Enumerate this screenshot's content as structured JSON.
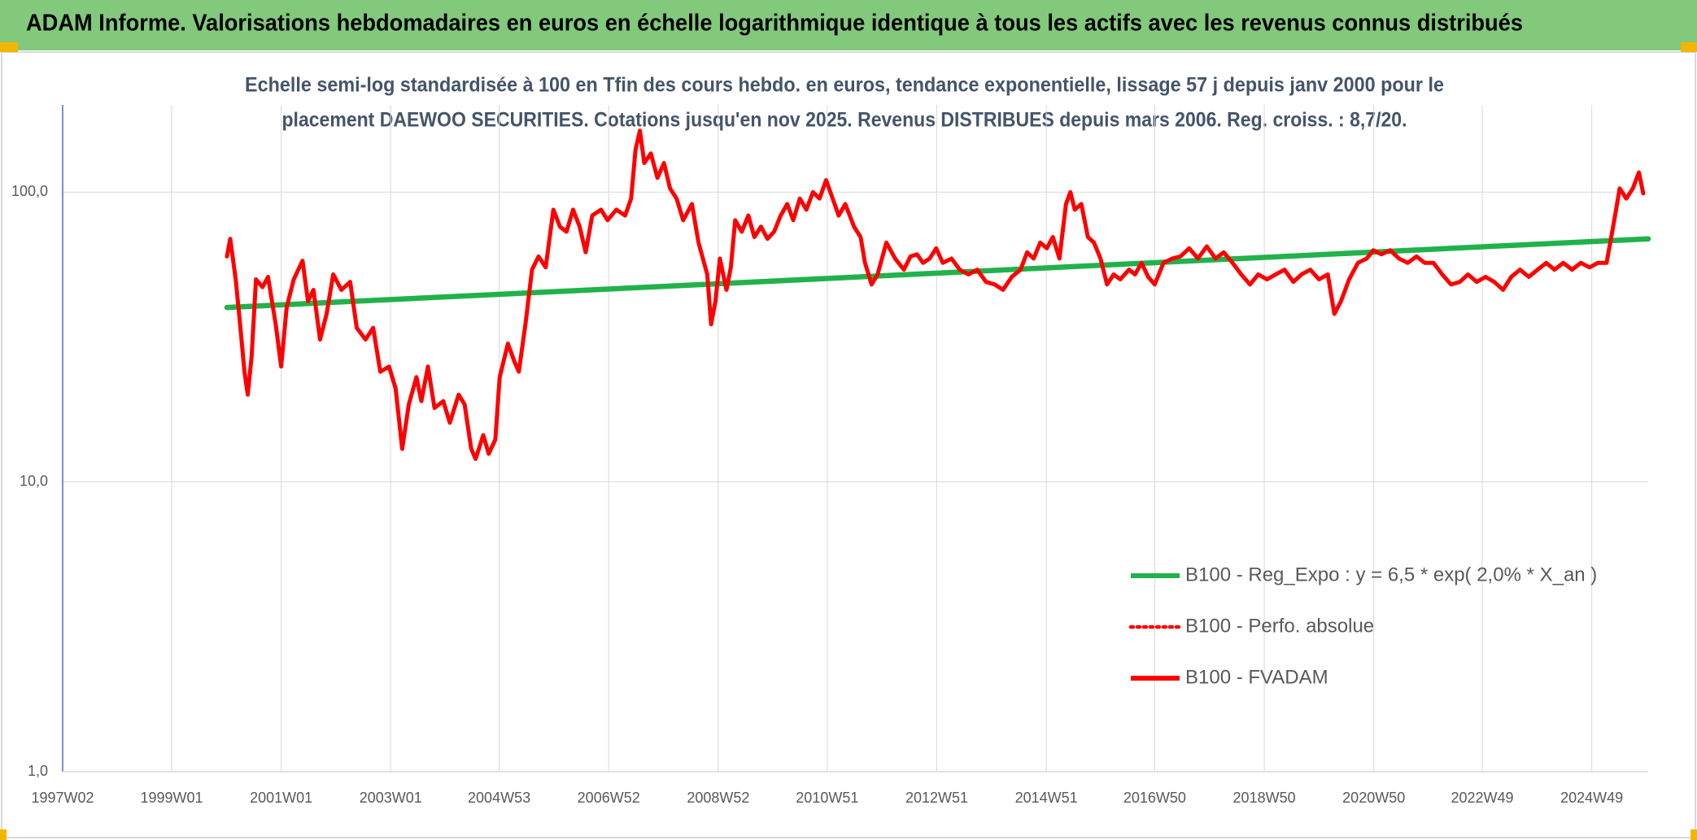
{
  "chart_data": {
    "type": "line",
    "title": "ADAM Informe. Valorisations hebdomadaires en euros en échelle logarithmique identique à tous les actifs avec les revenus connus distribués",
    "subtitle": [
      "Echelle semi-log standardisée à 100 en Tfin des cours hebdo. en euros, tendance exponentielle, lissage 57 j depuis janv 2000 pour le",
      "placement DAEWOO SECURITIES. Cotations jusqu'en nov 2025. Revenus DISTRIBUES depuis mars 2006. Reg. croiss. : 8,7/20."
    ],
    "yscale": "log",
    "ylim": [
      1,
      200
    ],
    "yticks": [
      {
        "value": 1,
        "label": "1,0"
      },
      {
        "value": 10,
        "label": "10,0"
      },
      {
        "value": 100,
        "label": "100,0"
      }
    ],
    "xlim": [
      1997.02,
      2025.97
    ],
    "xticks": [
      {
        "value": 1997.02,
        "label": "1997W02"
      },
      {
        "value": 1999.01,
        "label": "1999W01"
      },
      {
        "value": 2001.01,
        "label": "2001W01"
      },
      {
        "value": 2003.01,
        "label": "2003W01"
      },
      {
        "value": 2004.99,
        "label": "2004W53"
      },
      {
        "value": 2006.99,
        "label": "2006W52"
      },
      {
        "value": 2008.99,
        "label": "2008W52"
      },
      {
        "value": 2010.98,
        "label": "2010W51"
      },
      {
        "value": 2012.98,
        "label": "2012W51"
      },
      {
        "value": 2014.98,
        "label": "2014W51"
      },
      {
        "value": 2016.96,
        "label": "2016W50"
      },
      {
        "value": 2018.96,
        "label": "2018W50"
      },
      {
        "value": 2020.96,
        "label": "2020W50"
      },
      {
        "value": 2022.94,
        "label": "2022W49"
      },
      {
        "value": 2024.94,
        "label": "2024W49"
      }
    ],
    "grid": true,
    "legend": "lower right",
    "series": [
      {
        "name": "B100 - Reg_Expo : y = 6,5 * exp( 2,0% * X_an )",
        "color": "#21b24b",
        "dash": false,
        "x": [
          2000.02,
          2025.97
        ],
        "values": [
          40,
          69
        ]
      },
      {
        "name": "B100 - Perfo. absolue",
        "color": "#ff0000",
        "dash": true,
        "x": [],
        "values": []
      },
      {
        "name": "B100 - FVADAM",
        "color": "#ff0000",
        "dash": false,
        "x": [
          2000.02,
          2000.08,
          2000.18,
          2000.26,
          2000.34,
          2000.4,
          2000.47,
          2000.55,
          2000.67,
          2000.77,
          2000.91,
          2001.01,
          2001.11,
          2001.24,
          2001.4,
          2001.5,
          2001.6,
          2001.72,
          2001.84,
          2001.96,
          2002.11,
          2002.27,
          2002.39,
          2002.55,
          2002.69,
          2002.82,
          2002.98,
          2003.1,
          2003.22,
          2003.34,
          2003.48,
          2003.57,
          2003.69,
          2003.81,
          2003.97,
          2004.09,
          2004.25,
          2004.36,
          2004.48,
          2004.56,
          2004.7,
          2004.8,
          2004.92,
          2005.0,
          2005.15,
          2005.27,
          2005.35,
          2005.47,
          2005.59,
          2005.71,
          2005.84,
          2005.98,
          2006.1,
          2006.22,
          2006.34,
          2006.46,
          2006.57,
          2006.69,
          2006.85,
          2006.97,
          2007.13,
          2007.29,
          2007.4,
          2007.48,
          2007.56,
          2007.64,
          2007.76,
          2007.88,
          2008.0,
          2008.11,
          2008.23,
          2008.35,
          2008.51,
          2008.63,
          2008.71,
          2008.79,
          2008.86,
          2008.94,
          2009.02,
          2009.14,
          2009.22,
          2009.3,
          2009.42,
          2009.54,
          2009.65,
          2009.77,
          2009.89,
          2010.01,
          2010.13,
          2010.25,
          2010.36,
          2010.48,
          2010.6,
          2010.72,
          2010.84,
          2010.96,
          2011.08,
          2011.19,
          2011.31,
          2011.47,
          2011.59,
          2011.67,
          2011.79,
          2011.9,
          2012.06,
          2012.22,
          2012.38,
          2012.5,
          2012.62,
          2012.73,
          2012.85,
          2012.97,
          2013.09,
          2013.25,
          2013.4,
          2013.56,
          2013.72,
          2013.88,
          2014.04,
          2014.19,
          2014.35,
          2014.51,
          2014.63,
          2014.75,
          2014.87,
          2014.99,
          2015.1,
          2015.22,
          2015.34,
          2015.42,
          2015.5,
          2015.62,
          2015.74,
          2015.85,
          2015.97,
          2016.09,
          2016.21,
          2016.33,
          2016.49,
          2016.6,
          2016.72,
          2016.84,
          2016.96,
          2017.12,
          2017.28,
          2017.43,
          2017.59,
          2017.75,
          2017.91,
          2018.07,
          2018.22,
          2018.38,
          2018.54,
          2018.7,
          2018.85,
          2019.01,
          2019.17,
          2019.33,
          2019.49,
          2019.64,
          2019.8,
          2019.96,
          2020.12,
          2020.24,
          2020.36,
          2020.51,
          2020.67,
          2020.83,
          2020.95,
          2021.1,
          2021.26,
          2021.42,
          2021.58,
          2021.74,
          2021.89,
          2022.05,
          2022.21,
          2022.37,
          2022.53,
          2022.68,
          2022.84,
          2023.0,
          2023.16,
          2023.32,
          2023.47,
          2023.63,
          2023.79,
          2023.95,
          2024.11,
          2024.26,
          2024.42,
          2024.58,
          2024.74,
          2024.9,
          2025.05,
          2025.21,
          2025.33,
          2025.45,
          2025.57,
          2025.69,
          2025.8,
          2025.88
        ],
        "values": [
          60,
          69,
          50,
          35,
          24,
          20,
          27,
          50,
          47,
          51,
          35,
          25,
          40,
          50,
          58,
          42,
          46,
          31,
          38,
          52,
          46,
          49,
          34,
          31,
          34,
          24,
          25,
          21,
          13,
          18.5,
          23,
          19,
          25,
          18,
          19,
          16,
          20,
          18.5,
          13,
          12,
          14.5,
          12.5,
          14,
          23,
          30,
          26,
          24,
          35,
          54,
          60,
          55,
          87,
          76,
          73,
          87,
          76,
          62,
          83,
          87,
          80,
          87,
          83,
          95,
          140,
          163,
          126,
          136,
          112,
          126,
          103,
          95,
          80,
          91,
          67,
          59,
          52,
          35,
          42,
          59,
          46,
          55,
          80,
          73,
          83,
          70,
          76,
          69,
          73,
          83,
          91,
          80,
          95,
          87,
          100,
          95,
          110,
          95,
          83,
          91,
          76,
          70,
          57,
          48,
          52,
          67,
          59,
          54,
          60,
          61,
          57,
          59,
          64,
          57,
          59,
          54,
          52,
          54,
          49,
          48,
          46,
          51,
          54,
          62,
          59,
          67,
          64,
          70,
          59,
          91,
          100,
          87,
          91,
          70,
          67,
          59,
          48,
          52,
          50,
          54,
          52,
          57,
          51,
          48,
          57,
          59,
          60,
          64,
          59,
          65,
          59,
          62,
          57,
          52,
          48,
          52,
          50,
          52,
          54,
          49,
          52,
          54,
          50,
          52,
          38,
          42,
          50,
          57,
          59,
          63,
          61,
          63,
          59,
          57,
          60,
          57,
          57,
          52,
          48,
          49,
          52,
          49,
          51,
          49,
          46,
          51,
          54,
          51,
          54,
          57,
          54,
          57,
          54,
          57,
          55,
          57,
          57,
          76,
          103,
          95,
          103,
          117,
          99
        ]
      }
    ]
  }
}
